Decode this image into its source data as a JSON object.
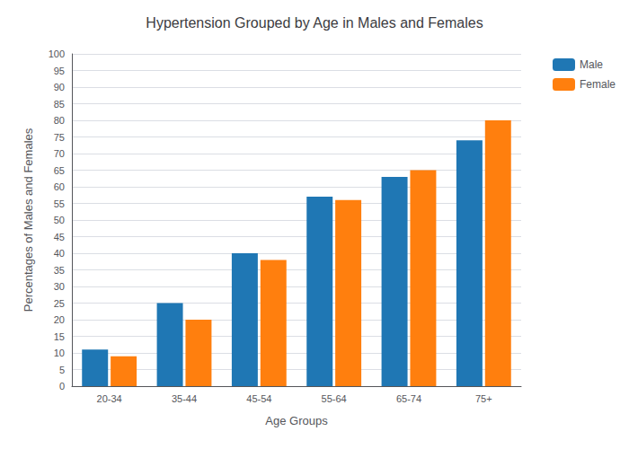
{
  "chart_data": {
    "type": "bar",
    "title": "Hypertension Grouped by Age in Males and Females",
    "xlabel": "Age Groups",
    "ylabel": "Percentages of Males and Females",
    "categories": [
      "20-34",
      "35-44",
      "45-54",
      "55-64",
      "65-74",
      "75+"
    ],
    "series": [
      {
        "name": "Male",
        "color": "#1f77b4",
        "values": [
          11,
          25,
          40,
          57,
          63,
          74
        ]
      },
      {
        "name": "Female",
        "color": "#ff7f0e",
        "values": [
          9,
          20,
          38,
          56,
          65,
          80
        ]
      }
    ],
    "ylim": [
      0,
      100
    ],
    "yticks": [
      0,
      5,
      10,
      15,
      20,
      25,
      30,
      35,
      40,
      45,
      50,
      55,
      60,
      65,
      70,
      75,
      80,
      85,
      90,
      95,
      100
    ],
    "grid": true,
    "legend": "upper right"
  }
}
